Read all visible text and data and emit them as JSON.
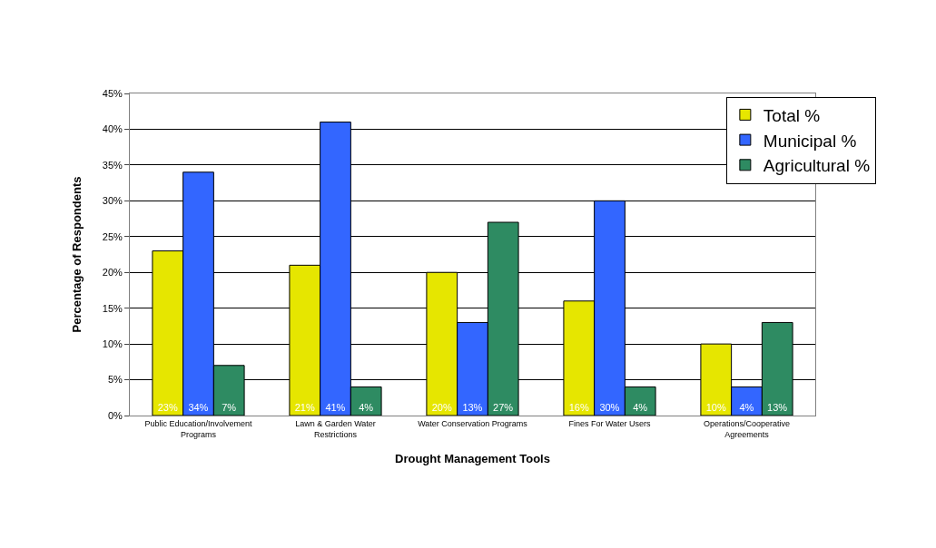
{
  "chart_data": {
    "type": "bar",
    "xlabel": "Drought Management Tools",
    "ylabel": "Percentage of Respondents",
    "categories": [
      "Public Education/Involvement Programs",
      "Lawn & Garden Water Restrictions",
      "Water Conservation Programs",
      "Fines For Water Users",
      "Operations/Cooperative Agreements"
    ],
    "series": [
      {
        "name": "Total %",
        "color": "#e6e600",
        "values": [
          23,
          21,
          20,
          16,
          10
        ],
        "value_labels": [
          "23%",
          "21%",
          "20%",
          "16%",
          "10%"
        ]
      },
      {
        "name": "Municipal %",
        "color": "#3366ff",
        "values": [
          34,
          41,
          13,
          30,
          4
        ],
        "value_labels": [
          "34%",
          "41%",
          "13%",
          "30%",
          "4%"
        ]
      },
      {
        "name": "Agricultural %",
        "color": "#2e8b62",
        "values": [
          7,
          4,
          27,
          4,
          13
        ],
        "value_labels": [
          "7%",
          "4%",
          "27%",
          "4%",
          "13%"
        ]
      }
    ],
    "ylim": [
      0,
      45
    ],
    "yticks": [
      {
        "value": 0,
        "label": "0%"
      },
      {
        "value": 5,
        "label": "5%"
      },
      {
        "value": 10,
        "label": "10%"
      },
      {
        "value": 15,
        "label": "15%"
      },
      {
        "value": 20,
        "label": "20%"
      },
      {
        "value": 25,
        "label": "25%"
      },
      {
        "value": 30,
        "label": "30%"
      },
      {
        "value": 35,
        "label": "35%"
      },
      {
        "value": 40,
        "label": "40%"
      },
      {
        "value": 45,
        "label": "45%"
      }
    ],
    "grid": "y",
    "legend": "top right"
  }
}
